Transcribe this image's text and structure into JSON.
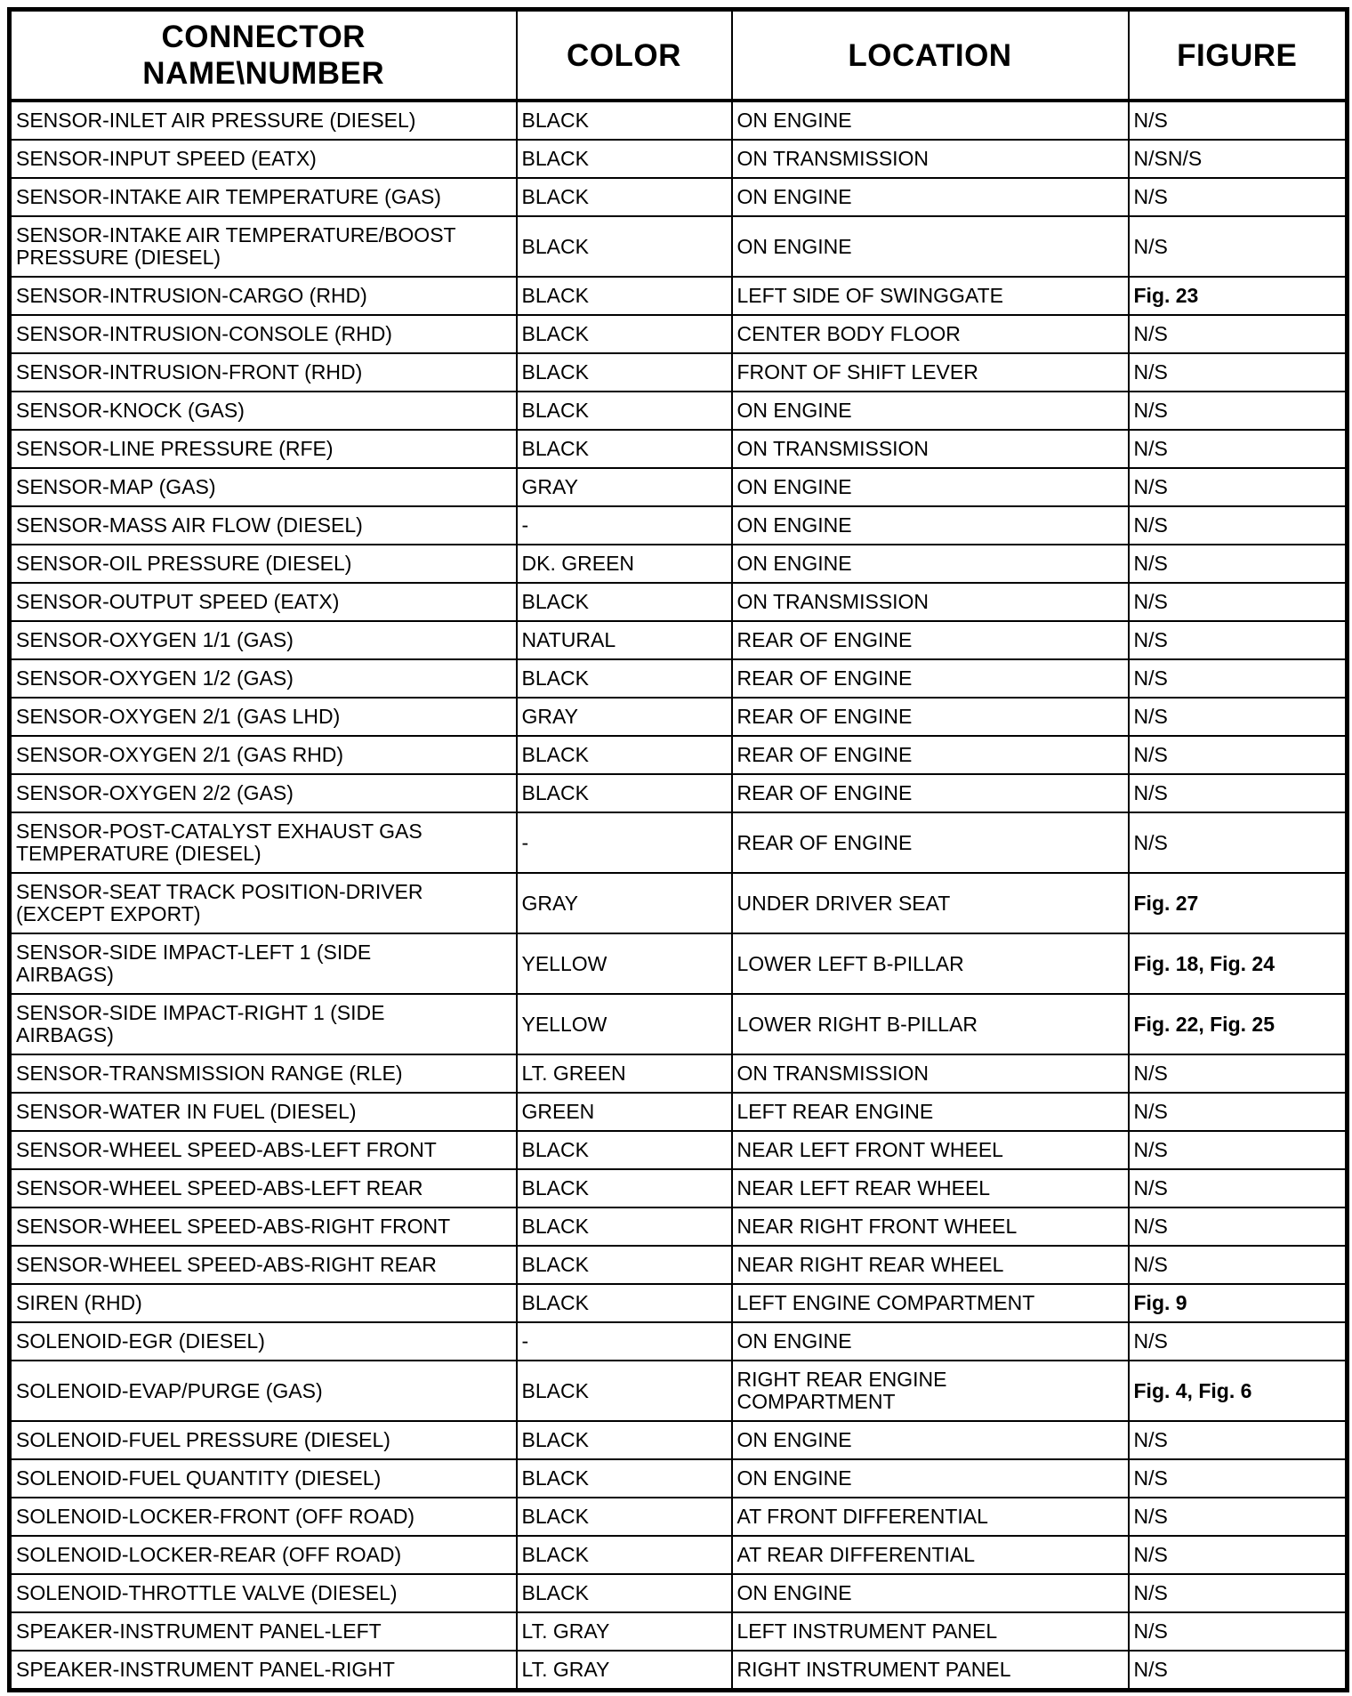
{
  "table": {
    "headers": {
      "connector": "CONNECTOR\nNAME\\NUMBER",
      "color": "COLOR",
      "location": "LOCATION",
      "figure": "FIGURE"
    },
    "rows": [
      {
        "name": "SENSOR-INLET AIR PRESSURE (DIESEL)",
        "color": "BLACK",
        "location": "ON ENGINE",
        "figure": "N/S",
        "figure_bold": false
      },
      {
        "name": "SENSOR-INPUT SPEED (EATX)",
        "color": "BLACK",
        "location": "ON TRANSMISSION",
        "figure": "N/SN/S",
        "figure_bold": false
      },
      {
        "name": "SENSOR-INTAKE AIR TEMPERATURE (GAS)",
        "color": "BLACK",
        "location": "ON ENGINE",
        "figure": "N/S",
        "figure_bold": false
      },
      {
        "name": "SENSOR-INTAKE AIR TEMPERATURE/BOOST\nPRESSURE (DIESEL)",
        "color": "BLACK",
        "location": "ON ENGINE",
        "figure": "N/S",
        "figure_bold": false
      },
      {
        "name": "SENSOR-INTRUSION-CARGO (RHD)",
        "color": "BLACK",
        "location": "LEFT SIDE OF SWINGGATE",
        "figure": "Fig. 23",
        "figure_bold": true
      },
      {
        "name": "SENSOR-INTRUSION-CONSOLE (RHD)",
        "color": "BLACK",
        "location": "CENTER BODY FLOOR",
        "figure": "N/S",
        "figure_bold": false
      },
      {
        "name": "SENSOR-INTRUSION-FRONT (RHD)",
        "color": "BLACK",
        "location": "FRONT OF SHIFT LEVER",
        "figure": "N/S",
        "figure_bold": false
      },
      {
        "name": "SENSOR-KNOCK (GAS)",
        "color": "BLACK",
        "location": "ON ENGINE",
        "figure": "N/S",
        "figure_bold": false
      },
      {
        "name": "SENSOR-LINE PRESSURE (RFE)",
        "color": "BLACK",
        "location": "ON TRANSMISSION",
        "figure": "N/S",
        "figure_bold": false
      },
      {
        "name": "SENSOR-MAP (GAS)",
        "color": "GRAY",
        "location": "ON ENGINE",
        "figure": "N/S",
        "figure_bold": false
      },
      {
        "name": "SENSOR-MASS AIR FLOW (DIESEL)",
        "color": "-",
        "location": "ON ENGINE",
        "figure": "N/S",
        "figure_bold": false
      },
      {
        "name": "SENSOR-OIL PRESSURE (DIESEL)",
        "color": "DK. GREEN",
        "location": "ON ENGINE",
        "figure": "N/S",
        "figure_bold": false
      },
      {
        "name": "SENSOR-OUTPUT SPEED (EATX)",
        "color": "BLACK",
        "location": "ON TRANSMISSION",
        "figure": "N/S",
        "figure_bold": false
      },
      {
        "name": "SENSOR-OXYGEN 1/1 (GAS)",
        "color": "NATURAL",
        "location": "REAR OF ENGINE",
        "figure": "N/S",
        "figure_bold": false
      },
      {
        "name": "SENSOR-OXYGEN 1/2 (GAS)",
        "color": "BLACK",
        "location": "REAR OF ENGINE",
        "figure": "N/S",
        "figure_bold": false
      },
      {
        "name": "SENSOR-OXYGEN 2/1 (GAS LHD)",
        "color": "GRAY",
        "location": "REAR OF ENGINE",
        "figure": "N/S",
        "figure_bold": false
      },
      {
        "name": "SENSOR-OXYGEN 2/1 (GAS RHD)",
        "color": "BLACK",
        "location": "REAR OF ENGINE",
        "figure": "N/S",
        "figure_bold": false
      },
      {
        "name": "SENSOR-OXYGEN 2/2 (GAS)",
        "color": "BLACK",
        "location": "REAR OF ENGINE",
        "figure": "N/S",
        "figure_bold": false
      },
      {
        "name": "SENSOR-POST-CATALYST EXHAUST GAS\nTEMPERATURE (DIESEL)",
        "color": "-",
        "location": "REAR OF ENGINE",
        "figure": "N/S",
        "figure_bold": false
      },
      {
        "name": "SENSOR-SEAT TRACK POSITION-DRIVER\n(EXCEPT EXPORT)",
        "color": "GRAY",
        "location": "UNDER DRIVER SEAT",
        "figure": "Fig. 27",
        "figure_bold": true
      },
      {
        "name": "SENSOR-SIDE IMPACT-LEFT 1 (SIDE\nAIRBAGS)",
        "color": "YELLOW",
        "location": "LOWER LEFT B-PILLAR",
        "figure": "Fig. 18, Fig. 24",
        "figure_bold": true
      },
      {
        "name": "SENSOR-SIDE IMPACT-RIGHT 1 (SIDE\nAIRBAGS)",
        "color": "YELLOW",
        "location": "LOWER RIGHT B-PILLAR",
        "figure": "Fig. 22, Fig. 25",
        "figure_bold": true
      },
      {
        "name": "SENSOR-TRANSMISSION RANGE (RLE)",
        "color": "LT. GREEN",
        "location": "ON TRANSMISSION",
        "figure": "N/S",
        "figure_bold": false
      },
      {
        "name": "SENSOR-WATER IN FUEL (DIESEL)",
        "color": "GREEN",
        "location": "LEFT REAR ENGINE",
        "figure": "N/S",
        "figure_bold": false
      },
      {
        "name": "SENSOR-WHEEL SPEED-ABS-LEFT FRONT",
        "color": "BLACK",
        "location": "NEAR LEFT FRONT WHEEL",
        "figure": "N/S",
        "figure_bold": false
      },
      {
        "name": "SENSOR-WHEEL SPEED-ABS-LEFT REAR",
        "color": "BLACK",
        "location": "NEAR LEFT REAR WHEEL",
        "figure": "N/S",
        "figure_bold": false
      },
      {
        "name": "SENSOR-WHEEL SPEED-ABS-RIGHT FRONT",
        "color": "BLACK",
        "location": "NEAR RIGHT FRONT WHEEL",
        "figure": "N/S",
        "figure_bold": false
      },
      {
        "name": "SENSOR-WHEEL SPEED-ABS-RIGHT REAR",
        "color": "BLACK",
        "location": "NEAR RIGHT REAR WHEEL",
        "figure": "N/S",
        "figure_bold": false
      },
      {
        "name": "SIREN (RHD)",
        "color": "BLACK",
        "location": "LEFT ENGINE COMPARTMENT",
        "figure": "Fig. 9",
        "figure_bold": true
      },
      {
        "name": "SOLENOID-EGR (DIESEL)",
        "color": "-",
        "location": "ON ENGINE",
        "figure": "N/S",
        "figure_bold": false
      },
      {
        "name": "SOLENOID-EVAP/PURGE (GAS)",
        "color": "BLACK",
        "location": "RIGHT REAR ENGINE\nCOMPARTMENT",
        "figure": "Fig. 4, Fig. 6",
        "figure_bold": true
      },
      {
        "name": "SOLENOID-FUEL PRESSURE (DIESEL)",
        "color": "BLACK",
        "location": "ON ENGINE",
        "figure": "N/S",
        "figure_bold": false
      },
      {
        "name": "SOLENOID-FUEL QUANTITY (DIESEL)",
        "color": "BLACK",
        "location": "ON ENGINE",
        "figure": "N/S",
        "figure_bold": false
      },
      {
        "name": "SOLENOID-LOCKER-FRONT (OFF ROAD)",
        "color": "BLACK",
        "location": "AT FRONT DIFFERENTIAL",
        "figure": "N/S",
        "figure_bold": false
      },
      {
        "name": "SOLENOID-LOCKER-REAR (OFF ROAD)",
        "color": "BLACK",
        "location": "AT REAR DIFFERENTIAL",
        "figure": "N/S",
        "figure_bold": false
      },
      {
        "name": "SOLENOID-THROTTLE VALVE (DIESEL)",
        "color": "BLACK",
        "location": "ON ENGINE",
        "figure": "N/S",
        "figure_bold": false
      },
      {
        "name": "SPEAKER-INSTRUMENT PANEL-LEFT",
        "color": "LT. GRAY",
        "location": "LEFT INSTRUMENT PANEL",
        "figure": "N/S",
        "figure_bold": false
      },
      {
        "name": "SPEAKER-INSTRUMENT PANEL-RIGHT",
        "color": "LT. GRAY",
        "location": "RIGHT INSTRUMENT PANEL",
        "figure": "N/S",
        "figure_bold": false
      }
    ]
  }
}
